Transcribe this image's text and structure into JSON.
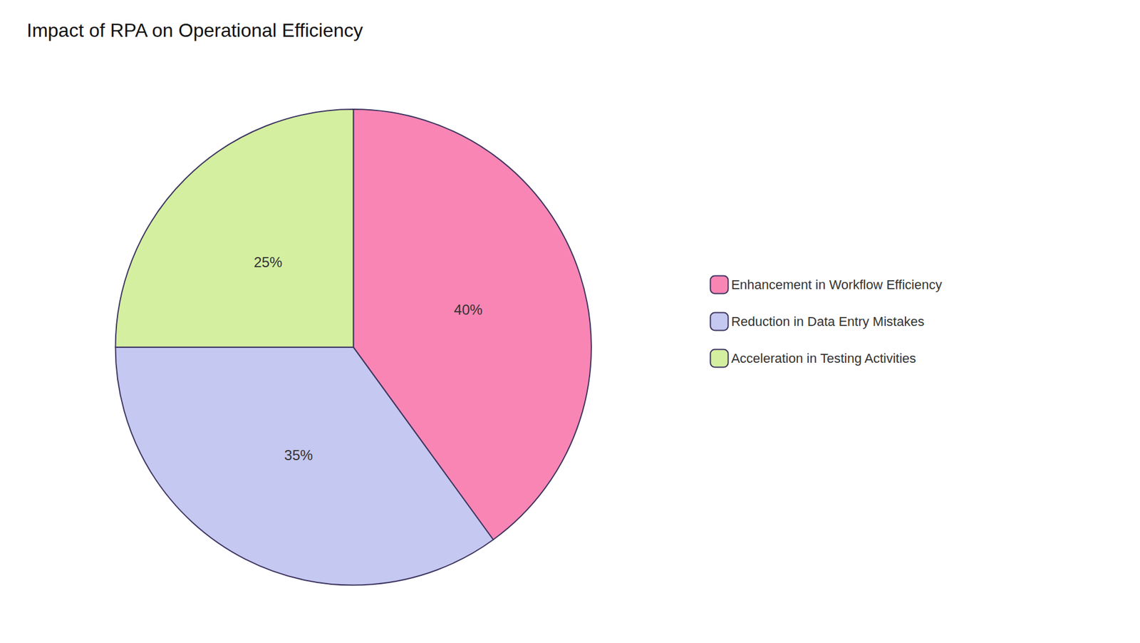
{
  "chart_data": {
    "type": "pie",
    "title": "Impact of RPA on Operational Efficiency",
    "categories": [
      "Enhancement in Workflow Efficiency",
      "Reduction in Data Entry Mistakes",
      "Acceleration in Testing Activities"
    ],
    "values": [
      40,
      35,
      25
    ],
    "value_labels": [
      "40%",
      "35%",
      "25%"
    ],
    "colors": [
      "#F985B5",
      "#C5C8F0",
      "#D4EFA0"
    ],
    "data_labels": true,
    "legend": "right"
  }
}
